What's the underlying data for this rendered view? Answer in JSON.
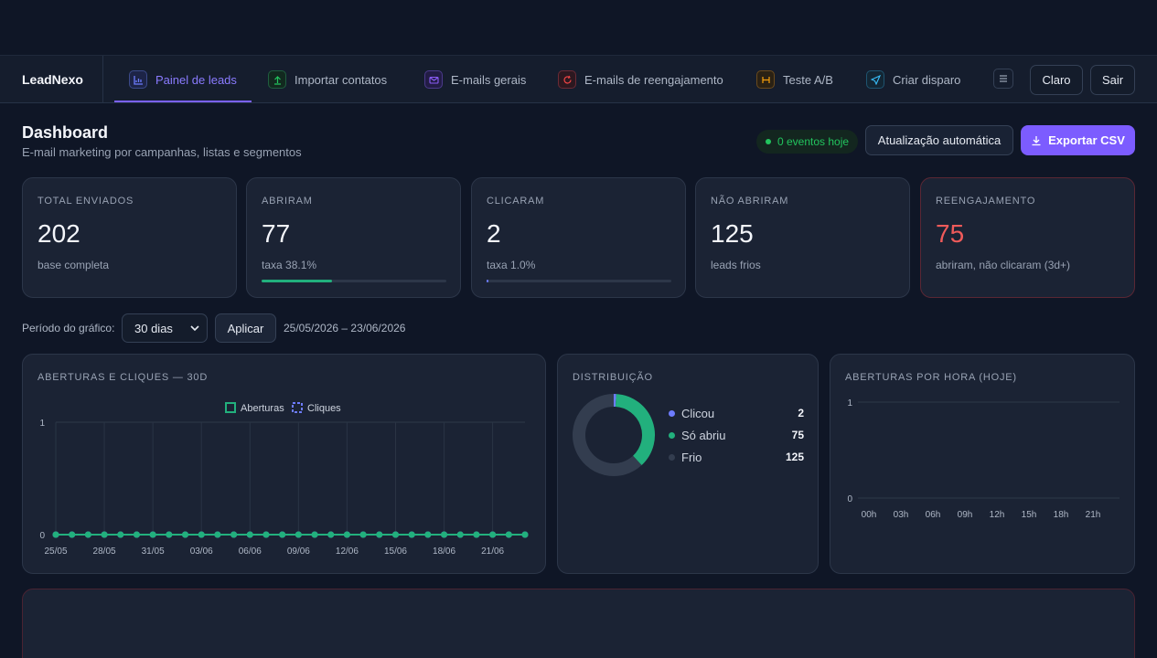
{
  "brand": "LeadNexo",
  "nav": {
    "tabs": [
      {
        "label": "Painel de leads",
        "icon": "chart-icon",
        "color": "#6d7cff",
        "active": true
      },
      {
        "label": "Importar contatos",
        "icon": "upload-icon",
        "color": "#22c55e",
        "active": false
      },
      {
        "label": "E-mails gerais",
        "icon": "mail-icon",
        "color": "#8b5cf6",
        "active": false
      },
      {
        "label": "E-mails de reengajamento",
        "icon": "refresh-icon",
        "color": "#ef4444",
        "active": false
      },
      {
        "label": "Teste A/B",
        "icon": "split-icon",
        "color": "#f59e0b",
        "active": false
      },
      {
        "label": "Criar disparo",
        "icon": "send-icon",
        "color": "#38bdf8",
        "active": false
      }
    ],
    "theme_label": "Claro",
    "logout_label": "Sair"
  },
  "header": {
    "title": "Dashboard",
    "subtitle": "E-mail marketing por campanhas, listas e segmentos",
    "live_badge": "0 eventos hoje",
    "auto_refresh_label": "Atualização automática",
    "export_label": "Exportar CSV"
  },
  "stats": [
    {
      "label": "TOTAL ENVIADOS",
      "value": "202",
      "sub": "base completa"
    },
    {
      "label": "ABRIRAM",
      "value": "77",
      "sub": "taxa 38.1%",
      "progress": 0.381,
      "color": "#22b07d"
    },
    {
      "label": "CLICARAM",
      "value": "2",
      "sub": "taxa 1.0%",
      "progress": 0.01,
      "color": "#6d7cff"
    },
    {
      "label": "NÃO ABRIRAM",
      "value": "125",
      "sub": "leads frios"
    },
    {
      "label": "REENGAJAMENTO",
      "value": "75",
      "sub": "abriram, não clicaram (3d+)"
    }
  ],
  "period": {
    "label": "Período do gráfico:",
    "selected": "30 dias",
    "apply_label": "Aplicar",
    "range": "25/05/2026 – 23/06/2026"
  },
  "charts": {
    "line_title": "ABERTURAS E CLIQUES — 30D",
    "donut_title": "DISTRIBUIÇÃO",
    "hourly_title": "ABERTURAS POR HORA (HOJE)"
  },
  "chart_data": [
    {
      "type": "line",
      "title": "ABERTURAS E CLIQUES — 30D",
      "x": [
        "25/05",
        "26/05",
        "27/05",
        "28/05",
        "29/05",
        "30/05",
        "31/05",
        "01/06",
        "02/06",
        "03/06",
        "04/06",
        "05/06",
        "06/06",
        "07/06",
        "08/06",
        "09/06",
        "10/06",
        "11/06",
        "12/06",
        "13/06",
        "14/06",
        "15/06",
        "16/06",
        "17/06",
        "18/06",
        "19/06",
        "20/06",
        "21/06",
        "22/06",
        "23/06"
      ],
      "x_tick_labels": [
        "25/05",
        "28/05",
        "31/05",
        "03/06",
        "06/06",
        "09/06",
        "12/06",
        "15/06",
        "18/06",
        "21/06"
      ],
      "series": [
        {
          "name": "Aberturas",
          "color": "#22b07d",
          "values": [
            0,
            0,
            0,
            0,
            0,
            0,
            0,
            0,
            0,
            0,
            0,
            0,
            0,
            0,
            0,
            0,
            0,
            0,
            0,
            0,
            0,
            0,
            0,
            0,
            0,
            0,
            0,
            0,
            0,
            0
          ]
        },
        {
          "name": "Cliques",
          "color": "#6d7cff",
          "values": [
            0,
            0,
            0,
            0,
            0,
            0,
            0,
            0,
            0,
            0,
            0,
            0,
            0,
            0,
            0,
            0,
            0,
            0,
            0,
            0,
            0,
            0,
            0,
            0,
            0,
            0,
            0,
            0,
            0,
            0
          ]
        }
      ],
      "ylim": [
        0,
        1
      ],
      "y_ticks": [
        "0",
        "1"
      ],
      "legend": "top-center",
      "grid": true
    },
    {
      "type": "pie",
      "title": "DISTRIBUIÇÃO",
      "donut": true,
      "slices": [
        {
          "name": "Clicou",
          "value": 2,
          "color": "#6d7cff"
        },
        {
          "name": "Só abriu",
          "value": 75,
          "color": "#22b07d"
        },
        {
          "name": "Frio",
          "value": 125,
          "color": "#333d4f"
        }
      ]
    },
    {
      "type": "bar",
      "title": "ABERTURAS POR HORA (HOJE)",
      "categories": [
        "00h",
        "03h",
        "06h",
        "09h",
        "12h",
        "15h",
        "18h",
        "21h"
      ],
      "values": [
        0,
        0,
        0,
        0,
        0,
        0,
        0,
        0
      ],
      "ylim": [
        0,
        1
      ],
      "y_ticks": [
        "0",
        "1"
      ],
      "grid": true
    }
  ]
}
